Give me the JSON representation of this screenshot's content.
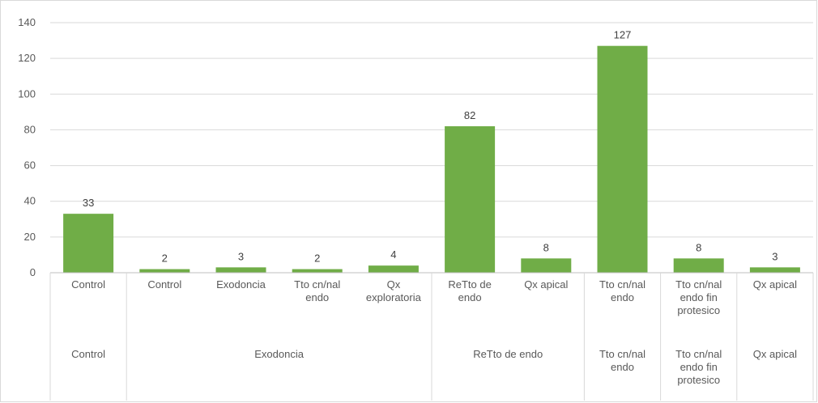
{
  "chart_data": {
    "type": "bar",
    "title": "",
    "xlabel": "",
    "ylabel": "",
    "ylim": [
      0,
      140
    ],
    "yticks": [
      0,
      20,
      40,
      60,
      80,
      100,
      120,
      140
    ],
    "grid": true,
    "legend": "none",
    "bar_color": "#70ad47",
    "categories": [
      [
        "Control"
      ],
      [
        "Control"
      ],
      [
        "Exodoncia"
      ],
      [
        "Tto cn/nal",
        "endo"
      ],
      [
        "Qx",
        "exploratoria"
      ],
      [
        "ReTto de",
        "endo"
      ],
      [
        "Qx apical"
      ],
      [
        "Tto cn/nal",
        "endo"
      ],
      [
        "Tto cn/nal",
        "endo fin",
        "protesico"
      ],
      [
        "Qx apical"
      ]
    ],
    "values": [
      33,
      2,
      3,
      2,
      4,
      82,
      8,
      127,
      8,
      3
    ],
    "groups": [
      {
        "label": [
          "Control"
        ],
        "start": 0,
        "end": 0
      },
      {
        "label": [
          "Exodoncia"
        ],
        "start": 1,
        "end": 4
      },
      {
        "label": [
          "ReTto de endo"
        ],
        "start": 5,
        "end": 6
      },
      {
        "label": [
          "Tto cn/nal",
          "endo"
        ],
        "start": 7,
        "end": 7
      },
      {
        "label": [
          "Tto cn/nal",
          "endo fin",
          "protesico"
        ],
        "start": 8,
        "end": 8
      },
      {
        "label": [
          "Qx apical"
        ],
        "start": 9,
        "end": 9
      }
    ]
  }
}
